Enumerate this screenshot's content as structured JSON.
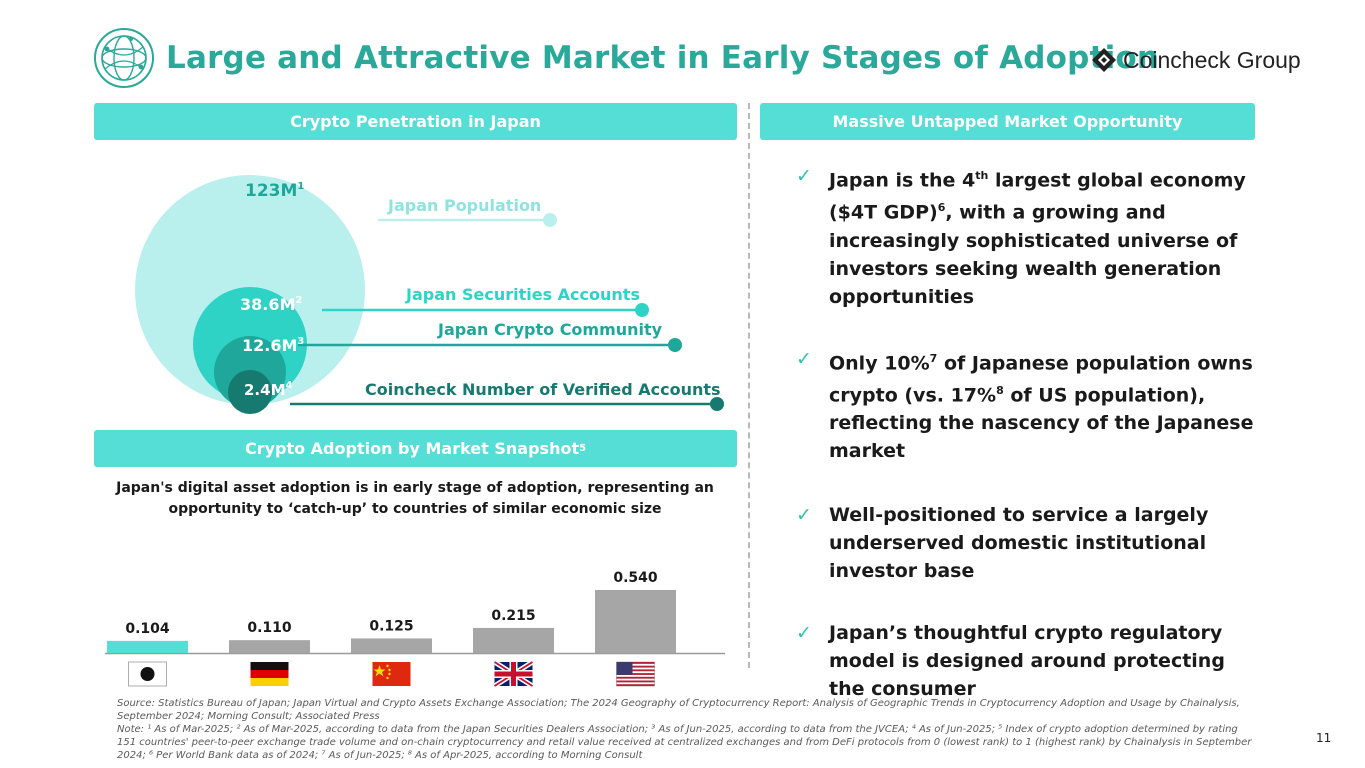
{
  "header": {
    "title": "Large and Attractive Market in Early Stages of Adoption",
    "brand": "Coincheck Group",
    "globe_icon": "globe-icon",
    "brand_icon": "coincheck-diamond-icon"
  },
  "sections": {
    "penetration": "Crypto Penetration in Japan",
    "opportunity": "Massive Untapped Market Opportunity",
    "snapshot": "Crypto Adoption by Market Snapshot",
    "snapshot_sup": "5"
  },
  "venn": {
    "population": {
      "value": "123M",
      "sup": "1",
      "label": "Japan Population"
    },
    "securities": {
      "value": "38.6M",
      "sup": "2",
      "label": "Japan Securities Accounts"
    },
    "crypto": {
      "value": "12.6M",
      "sup": "3",
      "label": "Japan Crypto Community"
    },
    "coincheck": {
      "value": "2.4M",
      "sup": "4",
      "label": "Coincheck Number of Verified Accounts"
    }
  },
  "snapshot_caption": "Japan's digital asset adoption is in early stage of adoption, representing an opportunity to ‘catch-up’ to countries of similar economic size",
  "chart_data": {
    "type": "bar",
    "categories": [
      "Japan",
      "Germany",
      "China",
      "United Kingdom",
      "United States"
    ],
    "category_icons": [
      "japan-flag-icon",
      "germany-flag-icon",
      "china-flag-icon",
      "uk-flag-icon",
      "us-flag-icon"
    ],
    "values": [
      0.104,
      0.11,
      0.125,
      0.215,
      0.54
    ],
    "labels": [
      "0.104",
      "0.110",
      "0.125",
      "0.215",
      "0.540"
    ],
    "highlight_color": "#55ded6",
    "bar_color": "#a6a6a6",
    "ylim": [
      0,
      0.54
    ]
  },
  "bullets": {
    "b1": {
      "pre": "Japan is the 4",
      "sup1": "th",
      "mid": " largest global economy ($4T GDP)",
      "sup2": "6",
      "post": ", with a growing and increasingly sophisticated universe of investors seeking wealth generation opportunities"
    },
    "b2": {
      "pre": "Only 10%",
      "sup1": "7",
      "mid": " of Japanese population owns crypto (vs. 17%",
      "sup2": "8",
      "post": " of US population), reflecting the nascency of the Japanese market"
    },
    "b3": {
      "text": "Well-positioned to service a largely underserved domestic institutional investor base"
    },
    "b4": {
      "text": "Japan’s thoughtful crypto regulatory model is designed around protecting the consumer"
    },
    "check": "✓"
  },
  "footnotes": {
    "source": "Source: Statistics Bureau of Japan; Japan Virtual and Crypto Assets Exchange Association; The 2024 Geography of Cryptocurrency Report: Analysis of Geographic Trends in Cryptocurrency Adoption and Usage by Chainalysis, September 2024; Morning Consult; Associated Press",
    "note": "Note: ¹ As of Mar-2025; ² As of Mar-2025, according to data from the Japan Securities Dealers Association; ³ As of Jun-2025, according to data from the JVCEA; ⁴ As of Jun-2025; ⁵ Index of crypto adoption determined by rating 151 countries' peer-to-peer exchange trade volume and on-chain cryptocurrency and retail value received at centralized exchanges and from DeFi protocols from 0 (lowest rank) to 1 (highest rank) by Chainalysis in September 2024; ⁶ Per World Bank data as of 2024; ⁷ As of Jun-2025; ⁸ As of Apr-2025, according to Morning Consult"
  },
  "page_number": "11",
  "colors": {
    "title": "#2aa89a",
    "bar": "#55ded6",
    "circle_outer": "#b9f0ee",
    "circle_mid": "#2ed3c6",
    "circle_inner": "#1fa79b",
    "circle_core": "#167a70"
  }
}
